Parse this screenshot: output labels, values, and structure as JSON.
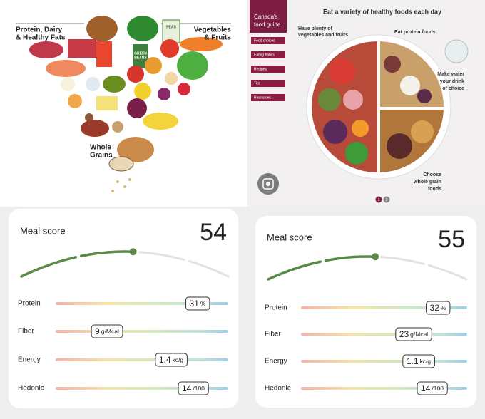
{
  "food_heart": {
    "labels": {
      "protein": [
        "Protein, Dairy",
        "& Healthy Fats"
      ],
      "vegetables": [
        "Vegetables",
        "& Fruits"
      ],
      "grains": [
        "Whole",
        "Grains"
      ]
    },
    "package_labels": {
      "beans": [
        "GREEN",
        "BEANS"
      ],
      "peas": "PEAS"
    }
  },
  "food_guide": {
    "brand": [
      "Canada's",
      "food guide"
    ],
    "menu": [
      "Food choices",
      "Eating habits",
      "Recipes",
      "Tips",
      "Resources"
    ],
    "heading": "Eat a variety of healthy foods each day",
    "callouts": {
      "vegetables": [
        "Have plenty of",
        "vegetables and fruits"
      ],
      "protein": [
        "Eat protein foods"
      ],
      "water": [
        "Make water",
        "your drink",
        "of choice"
      ],
      "grains": [
        "Choose",
        "whole grain",
        "foods"
      ]
    },
    "pages": [
      "1",
      "2"
    ]
  },
  "score_cards": [
    {
      "title": "Meal score",
      "score": 54,
      "metrics": [
        {
          "name": "Protein",
          "value": 31,
          "unit": "%"
        },
        {
          "name": "Fiber",
          "value": 9,
          "unit": "g/Mcal"
        },
        {
          "name": "Energy",
          "value": 1.4,
          "unit": "kc/g"
        },
        {
          "name": "Hedonic",
          "value": 14,
          "unit": "/100"
        }
      ]
    },
    {
      "title": "Meal score",
      "score": 55,
      "metrics": [
        {
          "name": "Protein",
          "value": 32,
          "unit": "%"
        },
        {
          "name": "Fiber",
          "value": 23,
          "unit": "g/Mcal"
        },
        {
          "name": "Energy",
          "value": 1.1,
          "unit": "kc/g"
        },
        {
          "name": "Hedonic",
          "value": 14,
          "unit": "/100"
        }
      ]
    }
  ]
}
